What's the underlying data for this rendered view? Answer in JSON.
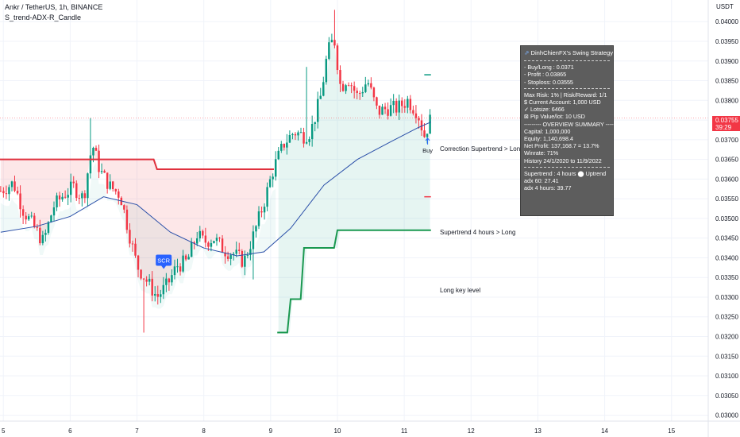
{
  "header": {
    "symbol_line": "Ankr / TetherUS, 1h, BINANCE",
    "indicator_name": "S_trend-ADX-R_Candle"
  },
  "price_axis": {
    "unit": "USDT",
    "labels": [
      "0.04000",
      "0.03950",
      "0.03900",
      "0.03850",
      "0.03800",
      "0.03750",
      "0.03700",
      "0.03650",
      "0.03600",
      "0.03550",
      "0.03500",
      "0.03450",
      "0.03400",
      "0.03350",
      "0.03300",
      "0.03250",
      "0.03200",
      "0.03150",
      "0.03100",
      "0.03050",
      "0.03000"
    ],
    "current_price": "0.03755",
    "countdown": "39:29"
  },
  "time_axis": {
    "labels": [
      "5",
      "6",
      "7",
      "8",
      "9",
      "10",
      "11",
      "12",
      "13",
      "14",
      "15"
    ]
  },
  "annotations": {
    "correction": "Correction Supertrend  > Long",
    "supertrend4h": "Supertrend 4 hours > Long",
    "long_key": "Long key level",
    "buy": "Buy",
    "scr": "SCR"
  },
  "info_panel": {
    "title": "DinhChienFX's Swing Strategy",
    "buy": "- Buy/Long   : 0.0371",
    "profit": "- Profit  : 0.03865",
    "stoploss": "- Stoploss: 0.03555",
    "risk": "Max Risk: 1% | Risk/Reward: 1/1",
    "account": "$ Current Account: 1,000 USD",
    "lotsize": "✓ Lotsize: 6466",
    "pip": "⊠ Pip Value/lot: 10 USD",
    "overview": "--------- OVERVIEW SUMMARY ---------",
    "capital": "Capital: 1,000,000",
    "equity": "Equity: 1,140,698.4",
    "net_profit": "Net Profit: 137,168.7 = 13.7%",
    "winrate": "Winrate: 71%",
    "history": "History 24/1/2020 to 11/9/2022",
    "supertrend": "Supertrend : 4 hours   ⬤  Uptrend",
    "adx60": "adx 60: 27.41",
    "adx4h": "adx 4 hours: 39.77"
  },
  "colors": {
    "up": "#089981",
    "down": "#f23645",
    "ma": "#2a4fa8",
    "supertrend_long": "#1a9850",
    "supertrend_short": "#e0303d",
    "panel_bg": "#5d5d5d"
  },
  "chart_data": {
    "type": "candlestick",
    "y_range": [
      0.02985,
      0.04055
    ],
    "x_range": [
      4.95,
      15.55
    ],
    "day_ticks": [
      5,
      6,
      7,
      8,
      9,
      10,
      11,
      12,
      13,
      14,
      15
    ],
    "close_series": [
      {
        "day": 4.96,
        "close": 0.0357
      },
      {
        "day": 5.15,
        "close": 0.0359
      },
      {
        "day": 5.3,
        "close": 0.0352
      },
      {
        "day": 5.45,
        "close": 0.0348
      },
      {
        "day": 5.6,
        "close": 0.0344
      },
      {
        "day": 5.75,
        "close": 0.0353
      },
      {
        "day": 5.9,
        "close": 0.0356
      },
      {
        "day": 6.05,
        "close": 0.0358
      },
      {
        "day": 6.2,
        "close": 0.0355
      },
      {
        "day": 6.33,
        "close": 0.0369
      },
      {
        "day": 6.45,
        "close": 0.0362
      },
      {
        "day": 6.6,
        "close": 0.0358
      },
      {
        "day": 6.75,
        "close": 0.0356
      },
      {
        "day": 6.9,
        "close": 0.0345
      },
      {
        "day": 7.0,
        "close": 0.0338
      },
      {
        "day": 7.15,
        "close": 0.0334
      },
      {
        "day": 7.3,
        "close": 0.033
      },
      {
        "day": 7.45,
        "close": 0.0333
      },
      {
        "day": 7.6,
        "close": 0.0338
      },
      {
        "day": 7.75,
        "close": 0.0339
      },
      {
        "day": 7.9,
        "close": 0.0346
      },
      {
        "day": 8.0,
        "close": 0.0344
      },
      {
        "day": 8.15,
        "close": 0.0345
      },
      {
        "day": 8.3,
        "close": 0.0342
      },
      {
        "day": 8.45,
        "close": 0.0341
      },
      {
        "day": 8.6,
        "close": 0.0339
      },
      {
        "day": 8.75,
        "close": 0.0346
      },
      {
        "day": 8.9,
        "close": 0.0354
      },
      {
        "day": 9.05,
        "close": 0.0363
      },
      {
        "day": 9.2,
        "close": 0.0369
      },
      {
        "day": 9.35,
        "close": 0.0372
      },
      {
        "day": 9.5,
        "close": 0.0371
      },
      {
        "day": 9.6,
        "close": 0.0372
      },
      {
        "day": 9.75,
        "close": 0.0381
      },
      {
        "day": 9.85,
        "close": 0.0392
      },
      {
        "day": 9.95,
        "close": 0.0396
      },
      {
        "day": 10.05,
        "close": 0.0383
      },
      {
        "day": 10.15,
        "close": 0.0386
      },
      {
        "day": 10.3,
        "close": 0.0381
      },
      {
        "day": 10.45,
        "close": 0.0385
      },
      {
        "day": 10.6,
        "close": 0.0377
      },
      {
        "day": 10.75,
        "close": 0.0378
      },
      {
        "day": 10.9,
        "close": 0.0378
      },
      {
        "day": 11.05,
        "close": 0.038
      },
      {
        "day": 11.2,
        "close": 0.0377
      },
      {
        "day": 11.3,
        "close": 0.0371
      },
      {
        "day": 11.4,
        "close": 0.03755
      }
    ],
    "moving_average": [
      {
        "day": 4.96,
        "value": 0.03465
      },
      {
        "day": 5.5,
        "value": 0.0348
      },
      {
        "day": 6.0,
        "value": 0.03505
      },
      {
        "day": 6.5,
        "value": 0.03555
      },
      {
        "day": 7.0,
        "value": 0.03535
      },
      {
        "day": 7.5,
        "value": 0.03465
      },
      {
        "day": 8.0,
        "value": 0.03425
      },
      {
        "day": 8.5,
        "value": 0.03405
      },
      {
        "day": 8.9,
        "value": 0.03415
      },
      {
        "day": 9.3,
        "value": 0.03475
      },
      {
        "day": 9.8,
        "value": 0.03585
      },
      {
        "day": 10.3,
        "value": 0.0365
      },
      {
        "day": 10.8,
        "value": 0.03695
      },
      {
        "day": 11.2,
        "value": 0.0373
      },
      {
        "day": 11.4,
        "value": 0.03745
      }
    ],
    "supertrend_short": [
      {
        "day": 4.95,
        "value": 0.0365
      },
      {
        "day": 7.25,
        "value": 0.0365
      },
      {
        "day": 7.3,
        "value": 0.03625
      },
      {
        "day": 9.05,
        "value": 0.03625
      }
    ],
    "supertrend_long_4h": [
      {
        "day": 9.1,
        "value": 0.0321
      },
      {
        "day": 9.25,
        "value": 0.0321
      },
      {
        "day": 9.3,
        "value": 0.03295
      },
      {
        "day": 9.45,
        "value": 0.03295
      },
      {
        "day": 9.5,
        "value": 0.03425
      },
      {
        "day": 9.95,
        "value": 0.03425
      },
      {
        "day": 10.0,
        "value": 0.0347
      },
      {
        "day": 11.4,
        "value": 0.0347
      }
    ],
    "levels": {
      "take_profit": 0.03865,
      "stop_loss": 0.03555
    },
    "markers": [
      {
        "label": "SCR",
        "day": 7.4,
        "price": 0.034
      },
      {
        "label": "Buy",
        "day": 11.35,
        "price": 0.0371
      }
    ]
  }
}
